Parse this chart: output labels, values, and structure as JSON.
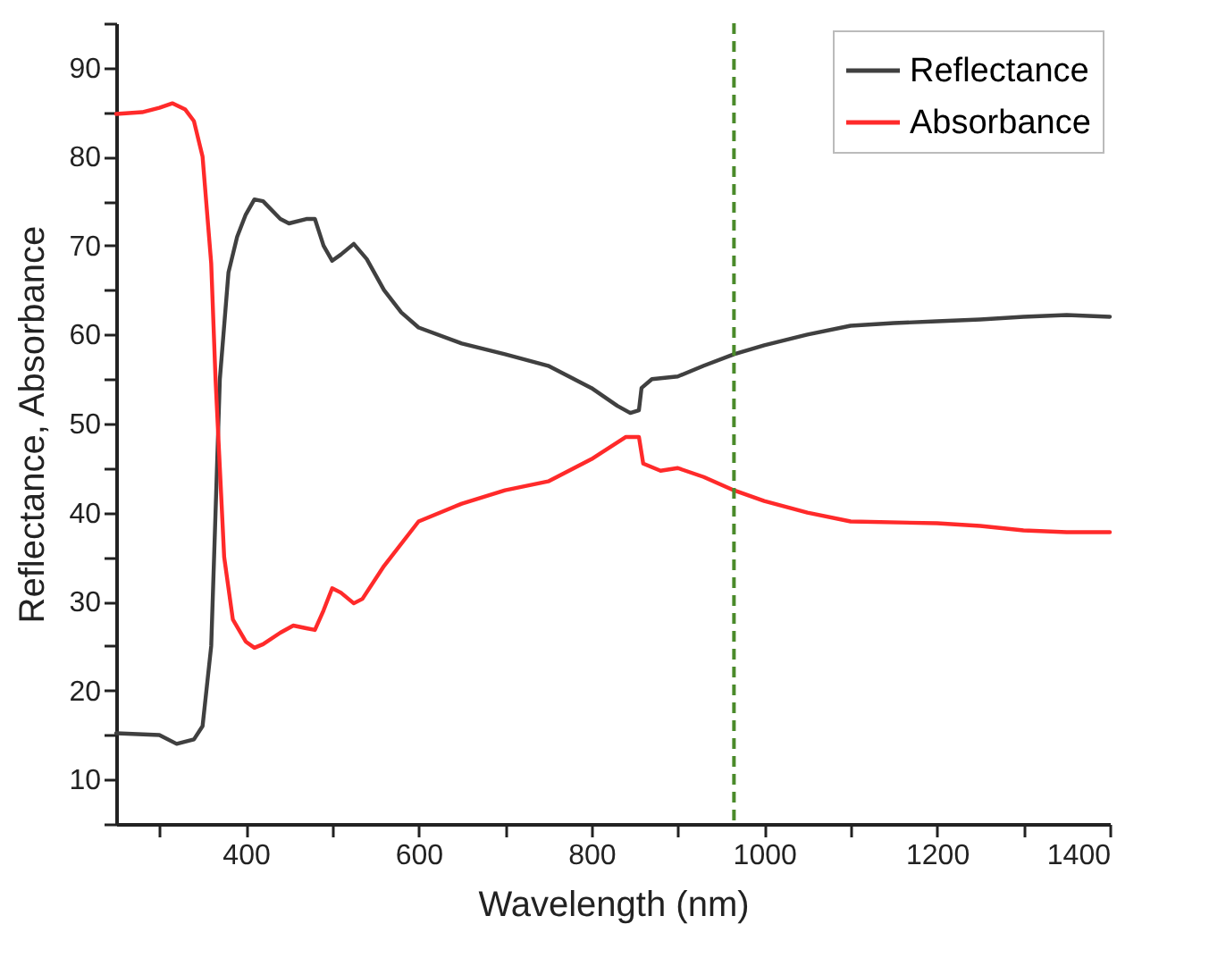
{
  "chart_data": {
    "type": "line",
    "xlabel": "Wavelength (nm)",
    "ylabel": "Reflectance, Absorbance",
    "xlim": [
      250,
      1400
    ],
    "ylim": [
      5,
      95
    ],
    "xticks": [
      {
        "value": 300,
        "label": null
      },
      400,
      {
        "value": 500,
        "label": null
      },
      600,
      {
        "value": 700,
        "label": null
      },
      800,
      {
        "value": 900,
        "label": null
      },
      1000,
      {
        "value": 1100,
        "label": null
      },
      1200,
      {
        "value": 1300,
        "label": null
      },
      1400
    ],
    "yticks": [
      {
        "value": 5,
        "label": null
      },
      10,
      {
        "value": 15,
        "label": null
      },
      20,
      {
        "value": 25,
        "label": null
      },
      30,
      {
        "value": 35,
        "label": null
      },
      40,
      {
        "value": 45,
        "label": null
      },
      50,
      {
        "value": 55,
        "label": null
      },
      60,
      {
        "value": 65,
        "label": null
      },
      70,
      {
        "value": 75,
        "label": null
      },
      80,
      {
        "value": 85,
        "label": null
      },
      90,
      {
        "value": 95,
        "label": null
      }
    ],
    "grid": false,
    "legend": "top right",
    "marker": "none",
    "line_style": "solid",
    "ref_lines": [
      {
        "axis": "x",
        "value": 965,
        "color": "#4a8a2a",
        "line_style": "dashed"
      }
    ],
    "series": [
      {
        "name": "Reflectance",
        "color": "#404040",
        "x": [
          250,
          300,
          320,
          340,
          350,
          360,
          365,
          370,
          380,
          390,
          400,
          410,
          420,
          440,
          450,
          470,
          480,
          490,
          500,
          510,
          525,
          540,
          560,
          580,
          600,
          650,
          700,
          750,
          800,
          830,
          845,
          855,
          858,
          870,
          900,
          930,
          965,
          1000,
          1050,
          1100,
          1150,
          1200,
          1250,
          1300,
          1350,
          1400
        ],
        "values": [
          15.2,
          15,
          14,
          14.5,
          16,
          25,
          40,
          55,
          67,
          71,
          73.5,
          75.2,
          75,
          73,
          72.5,
          73,
          73,
          70,
          68.3,
          69,
          70.2,
          68.5,
          65,
          62.5,
          60.8,
          59,
          57.8,
          56.5,
          54,
          52,
          51.2,
          51.5,
          54,
          55,
          55.3,
          56.5,
          57.8,
          58.8,
          60,
          61,
          61.3,
          61.5,
          61.7,
          62,
          62.2,
          62
        ]
      },
      {
        "name": "Absorbance",
        "color": "#ff2a2a",
        "x": [
          250,
          280,
          300,
          315,
          330,
          340,
          350,
          360,
          365,
          370,
          375,
          385,
          400,
          410,
          420,
          440,
          455,
          470,
          480,
          490,
          500,
          510,
          525,
          535,
          560,
          600,
          650,
          700,
          750,
          800,
          840,
          855,
          860,
          880,
          900,
          930,
          965,
          1000,
          1050,
          1100,
          1200,
          1250,
          1300,
          1350,
          1400
        ],
        "values": [
          84.8,
          85,
          85.5,
          86,
          85.3,
          84,
          80,
          68,
          55,
          45,
          35,
          28,
          25.5,
          24.8,
          25.2,
          26.5,
          27.3,
          27,
          26.8,
          29,
          31.5,
          31,
          29.8,
          30.3,
          34,
          39,
          41,
          42.5,
          43.5,
          46,
          48.5,
          48.5,
          45.5,
          44.7,
          45,
          44,
          42.5,
          41.3,
          40,
          39,
          38.8,
          38.5,
          38,
          37.8,
          37.8
        ]
      }
    ]
  }
}
